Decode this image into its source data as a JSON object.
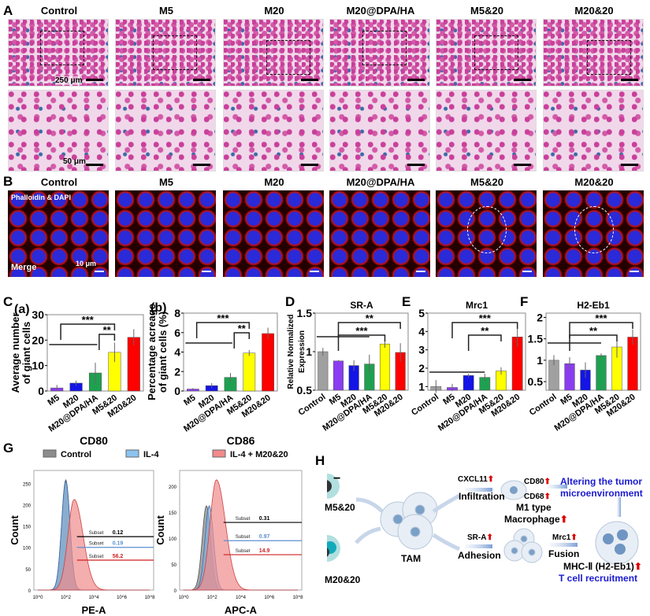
{
  "panelA": {
    "label": "A",
    "groups": [
      "Control",
      "M5",
      "M20",
      "M20@DPA/HA",
      "M5&20",
      "M20&20"
    ],
    "scalebar_top": "250 μm",
    "scalebar_bottom": "50 μm"
  },
  "panelB": {
    "label": "B",
    "groups": [
      "Control",
      "M5",
      "M20",
      "M20@DPA/HA",
      "M5&20",
      "M20&20"
    ],
    "stain": "Phalloidin & DAPI",
    "merge": "Merge",
    "scalebar": "10 μm"
  },
  "panelC": {
    "label": "C"
  },
  "panelD": {
    "label": "D"
  },
  "panelE": {
    "label": "E"
  },
  "panelF": {
    "label": "F"
  },
  "panelG": {
    "label": "G",
    "legend": [
      "Control",
      "IL-4",
      "IL-4 + M20&20"
    ],
    "legend_colors": [
      "#8c8c8c",
      "#8cc4f0",
      "#f28a8a"
    ]
  },
  "chart_data": [
    {
      "id": "ca",
      "type": "bar",
      "sublabel": "(a)",
      "title": "",
      "ylabel": [
        "Average number",
        "of giant cells"
      ],
      "categories": [
        "M5",
        "M20",
        "M20@DPA/HA",
        "M5&20",
        "M20&20"
      ],
      "values": [
        1.2,
        3.1,
        7.1,
        15.2,
        21.1
      ],
      "errors": [
        1.2,
        1,
        4,
        3.8,
        3.2
      ],
      "colors": [
        "#8a3cf0",
        "#1414e6",
        "#1fa050",
        "#ffff00",
        "#ff0000"
      ],
      "ylim": [
        0,
        30
      ],
      "yticks": [
        0,
        10,
        20,
        30
      ],
      "significance": [
        "***",
        "**"
      ]
    },
    {
      "id": "cb",
      "type": "bar",
      "sublabel": "(b)",
      "title": "",
      "ylabel": [
        "Percentage acreage",
        "of giant cells  (%)"
      ],
      "categories": [
        "M5",
        "M20",
        "M20@DPA/HA",
        "M5&20",
        "M20&20"
      ],
      "values": [
        0.2,
        0.55,
        1.4,
        3.9,
        5.9
      ],
      "errors": [
        0.1,
        0.25,
        0.45,
        0.3,
        0.6
      ],
      "colors": [
        "#8a3cf0",
        "#1414e6",
        "#1fa050",
        "#ffff00",
        "#ff0000"
      ],
      "ylim": [
        0,
        8
      ],
      "yticks": [
        0,
        2,
        4,
        6,
        8
      ],
      "significance": [
        "***",
        "**"
      ]
    },
    {
      "id": "d",
      "type": "bar",
      "title": "SR-A",
      "ylabel": [
        "Relative Normalized",
        "Expression"
      ],
      "categories": [
        "Control",
        "M5",
        "M20",
        "M20@DPA/HA",
        "M5&20",
        "M20&20"
      ],
      "values": [
        1.0,
        0.88,
        0.82,
        0.84,
        1.1,
        0.99
      ],
      "errors": [
        0.05,
        0.01,
        0.07,
        0.12,
        0.05,
        0.12
      ],
      "colors": [
        "#a0a0a0",
        "#8a3cf0",
        "#1414e6",
        "#1fa050",
        "#ffff00",
        "#ff0000"
      ],
      "ylim": [
        0.5,
        1.5
      ],
      "yticks": [
        0.5,
        1.0,
        1.5
      ],
      "significance": [
        "**",
        "***"
      ]
    },
    {
      "id": "e",
      "type": "bar",
      "title": "Mrc1",
      "ylabel": [],
      "categories": [
        "Control",
        "M5",
        "M20",
        "M20@DPA/HA",
        "M5&20",
        "M20&20"
      ],
      "values": [
        1.0,
        0.95,
        1.6,
        1.5,
        1.85,
        3.7
      ],
      "errors": [
        0.35,
        0.2,
        0.1,
        0.2,
        0.2,
        0.55
      ],
      "colors": [
        "#a0a0a0",
        "#8a3cf0",
        "#1414e6",
        "#1fa050",
        "#ffff00",
        "#ff0000"
      ],
      "ylim": [
        0.8,
        5
      ],
      "yticks": [
        1,
        2,
        3,
        4,
        5
      ],
      "significance": [
        "***",
        "**"
      ]
    },
    {
      "id": "f",
      "type": "bar",
      "title": "H2-Eb1",
      "ylabel": [],
      "categories": [
        "Control",
        "M5",
        "M20",
        "M20@DPA/HA",
        "M5&20",
        "M20&20"
      ],
      "values": [
        1.0,
        0.92,
        0.77,
        1.11,
        1.31,
        1.54
      ],
      "errors": [
        0.12,
        0.15,
        0.18,
        0.05,
        0.25,
        0.18
      ],
      "colors": [
        "#a0a0a0",
        "#8a3cf0",
        "#1414e6",
        "#1fa050",
        "#ffff00",
        "#ff0000"
      ],
      "ylim": [
        0.3,
        2.1
      ],
      "yticks": [
        0.5,
        1.0,
        1.5,
        2.0
      ],
      "significance": [
        "***",
        "**"
      ]
    },
    {
      "id": "g1",
      "type": "area",
      "title": "CD80",
      "xlabel": "PE-A",
      "ylabel": "Count",
      "xscale": "log",
      "xticks": [
        "10^0",
        "10^2",
        "10^4",
        "10^6",
        "10^8"
      ],
      "yticks": [
        0,
        50,
        100,
        150,
        200,
        250
      ],
      "ylim": [
        0,
        280
      ],
      "subsets": [
        {
          "label": "Subset",
          "value": "0.12",
          "color": "#000000"
        },
        {
          "label": "Subset",
          "value": "0.19",
          "color": "#5b8fd0"
        },
        {
          "label": "Subset",
          "value": "56.2",
          "color": "#d02020"
        }
      ],
      "peaks": [
        {
          "series": "Control",
          "log_x": 2.0,
          "count": 258
        },
        {
          "series": "IL-4",
          "log_x": 2.0,
          "count": 255
        },
        {
          "series": "IL-4 + M20&20",
          "log_x": 2.6,
          "count": 212
        }
      ]
    },
    {
      "id": "g2",
      "type": "area",
      "title": "CD86",
      "xlabel": "APC-A",
      "ylabel": "Count",
      "xscale": "log",
      "xticks": [
        "10^0",
        "10^2",
        "10^4",
        "10^6",
        "10^8"
      ],
      "yticks": [
        0,
        50,
        100,
        150,
        200
      ],
      "ylim": [
        0,
        230
      ],
      "subsets": [
        {
          "label": "Subset",
          "value": "0.31",
          "color": "#000000"
        },
        {
          "label": "Subset",
          "value": "0.97",
          "color": "#5b8fd0"
        },
        {
          "label": "Subset",
          "value": "14.9",
          "color": "#d02020"
        }
      ],
      "peaks": [
        {
          "series": "Control",
          "log_x": 1.6,
          "count": 162
        },
        {
          "series": "IL-4",
          "log_x": 1.8,
          "count": 162
        },
        {
          "series": "IL-4 + M20&20",
          "log_x": 2.3,
          "count": 212
        }
      ]
    }
  ],
  "panelH": {
    "label": "H",
    "m5": "M5&20",
    "m20": "M20&20",
    "tam": "TAM",
    "cxcl11": "CXCL11",
    "infiltration": "Infiltration",
    "cd80": "CD80",
    "cd68": "CD68",
    "m1": "M1 type",
    "macrophage": "Macrophage",
    "altering1": "Altering the tumor",
    "altering2": "microenvironment",
    "sra": "SR-A",
    "adhesion": "Adhesion",
    "mrc1": "Mrc1",
    "fusion": "Fusion",
    "mhc": "MHC-Ⅱ (H2-Eb1)",
    "tcell": "T cell recruitment",
    "up_arrow": "⬆"
  }
}
